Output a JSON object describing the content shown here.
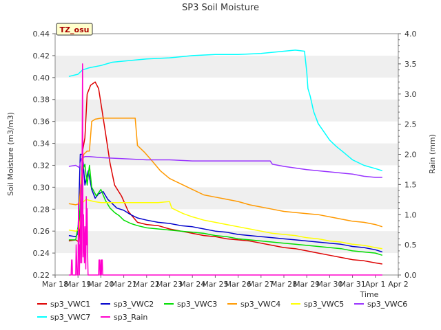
{
  "chart_data": {
    "type": "line",
    "title": "SP3 Soil Moisture",
    "badge": "TZ_osu",
    "xlabel": "Time",
    "ylabel": "Soil Moisture (m3/m3)",
    "y2label": "Rain (mm)",
    "xlim": [
      0,
      15
    ],
    "ylim": [
      0.22,
      0.44
    ],
    "y2lim": [
      0.0,
      4.0
    ],
    "grid": "alternating horizontal bands",
    "legend_position": "bottom",
    "x_ticks": [
      "Mar 18",
      "Mar 19",
      "Mar 20",
      "Mar 21",
      "Mar 22",
      "Mar 23",
      "Mar 24",
      "Mar 25",
      "Mar 26",
      "Mar 27",
      "Mar 28",
      "Mar 29",
      "Mar 30",
      "Mar 31",
      "Apr 1",
      "Apr 2"
    ],
    "y_ticks": [
      "0.22",
      "0.24",
      "0.26",
      "0.28",
      "0.30",
      "0.32",
      "0.34",
      "0.36",
      "0.38",
      "0.40",
      "0.42",
      "0.44"
    ],
    "y2_ticks": [
      "0.0",
      "0.5",
      "1.0",
      "1.5",
      "2.0",
      "2.5",
      "3.0",
      "3.5",
      "4.0"
    ],
    "series": [
      {
        "name": "sp3_VWC1",
        "color": "#dd0000",
        "axis": "left",
        "x": [
          0.6,
          0.9,
          1.05,
          1.2,
          1.3,
          1.4,
          1.55,
          1.75,
          1.9,
          2.05,
          2.2,
          2.4,
          2.6,
          2.9,
          3.2,
          3.6,
          4.0,
          4.5,
          5.0,
          5.5,
          6.0,
          6.5,
          7.0,
          7.5,
          8.0,
          8.5,
          9.0,
          9.5,
          10.0,
          10.5,
          11.0,
          11.5,
          12.0,
          12.5,
          13.0,
          13.5,
          14.0,
          14.3
        ],
        "y": [
          0.251,
          0.252,
          0.25,
          0.333,
          0.345,
          0.385,
          0.393,
          0.396,
          0.39,
          0.37,
          0.35,
          0.322,
          0.302,
          0.292,
          0.278,
          0.268,
          0.266,
          0.265,
          0.262,
          0.26,
          0.258,
          0.256,
          0.255,
          0.253,
          0.252,
          0.251,
          0.249,
          0.247,
          0.245,
          0.244,
          0.242,
          0.24,
          0.238,
          0.236,
          0.234,
          0.233,
          0.231,
          0.23
        ]
      },
      {
        "name": "sp3_VWC2",
        "color": "#0000cc",
        "axis": "left",
        "x": [
          0.6,
          0.9,
          1.0,
          1.1,
          1.2,
          1.3,
          1.45,
          1.6,
          1.75,
          1.9,
          2.1,
          2.3,
          2.5,
          2.7,
          3.0,
          3.3,
          3.6,
          4.0,
          4.5,
          5.0,
          5.5,
          6.0,
          6.5,
          7.0,
          7.5,
          8.0,
          8.5,
          9.0,
          9.5,
          10.0,
          10.5,
          11.0,
          11.5,
          12.0,
          12.5,
          13.0,
          13.5,
          14.0,
          14.3
        ],
        "y": [
          0.256,
          0.255,
          0.258,
          0.33,
          0.33,
          0.302,
          0.315,
          0.298,
          0.29,
          0.294,
          0.296,
          0.289,
          0.285,
          0.281,
          0.279,
          0.275,
          0.272,
          0.27,
          0.268,
          0.267,
          0.265,
          0.264,
          0.262,
          0.26,
          0.259,
          0.257,
          0.256,
          0.255,
          0.254,
          0.253,
          0.252,
          0.251,
          0.25,
          0.249,
          0.248,
          0.246,
          0.245,
          0.243,
          0.241
        ]
      },
      {
        "name": "sp3_VWC3",
        "color": "#00dd00",
        "axis": "left",
        "x": [
          0.6,
          0.9,
          1.05,
          1.2,
          1.3,
          1.4,
          1.5,
          1.6,
          1.8,
          2.0,
          2.2,
          2.4,
          2.6,
          2.8,
          3.0,
          3.3,
          3.6,
          4.0,
          4.5,
          5.0,
          5.5,
          6.0,
          6.5,
          7.0,
          7.5,
          8.0,
          8.5,
          9.0,
          9.5,
          10.0,
          10.5,
          11.0,
          11.5,
          12.0,
          12.5,
          13.0,
          13.5,
          14.0,
          14.3
        ],
        "y": [
          0.252,
          0.252,
          0.27,
          0.315,
          0.321,
          0.302,
          0.32,
          0.3,
          0.292,
          0.298,
          0.288,
          0.281,
          0.277,
          0.274,
          0.27,
          0.267,
          0.265,
          0.263,
          0.262,
          0.261,
          0.26,
          0.259,
          0.258,
          0.256,
          0.255,
          0.253,
          0.252,
          0.251,
          0.25,
          0.249,
          0.248,
          0.247,
          0.246,
          0.245,
          0.244,
          0.242,
          0.241,
          0.24,
          0.238
        ]
      },
      {
        "name": "sp3_VWC4",
        "color": "#ff9900",
        "axis": "left",
        "x": [
          0.6,
          0.9,
          1.05,
          1.15,
          1.25,
          1.4,
          1.5,
          1.6,
          1.75,
          2.0,
          2.5,
          3.0,
          3.3,
          3.5,
          3.6,
          3.9,
          4.2,
          4.6,
          5.0,
          5.5,
          6.0,
          6.5,
          7.0,
          7.5,
          8.0,
          8.5,
          9.0,
          9.5,
          10.0,
          10.5,
          11.0,
          11.5,
          12.0,
          12.5,
          13.0,
          13.5,
          14.0,
          14.3
        ],
        "y": [
          0.285,
          0.284,
          0.285,
          0.31,
          0.33,
          0.333,
          0.333,
          0.36,
          0.362,
          0.363,
          0.363,
          0.363,
          0.363,
          0.363,
          0.338,
          0.332,
          0.325,
          0.315,
          0.308,
          0.303,
          0.298,
          0.293,
          0.291,
          0.289,
          0.287,
          0.284,
          0.282,
          0.28,
          0.278,
          0.277,
          0.276,
          0.275,
          0.273,
          0.271,
          0.269,
          0.268,
          0.266,
          0.264
        ]
      },
      {
        "name": "sp3_VWC5",
        "color": "#ffff00",
        "axis": "left",
        "x": [
          0.6,
          0.9,
          1.05,
          1.2,
          1.35,
          1.5,
          1.7,
          2.0,
          2.5,
          3.0,
          3.5,
          4.0,
          4.5,
          5.0,
          5.1,
          5.3,
          5.6,
          6.0,
          6.5,
          7.0,
          7.5,
          8.0,
          8.5,
          9.0,
          9.5,
          10.0,
          10.5,
          11.0,
          11.5,
          12.0,
          12.5,
          13.0,
          13.5,
          14.0,
          14.3
        ],
        "y": [
          0.261,
          0.26,
          0.262,
          0.286,
          0.289,
          0.288,
          0.287,
          0.286,
          0.286,
          0.286,
          0.286,
          0.286,
          0.286,
          0.287,
          0.281,
          0.279,
          0.276,
          0.273,
          0.27,
          0.268,
          0.266,
          0.264,
          0.262,
          0.26,
          0.258,
          0.257,
          0.256,
          0.254,
          0.253,
          0.251,
          0.25,
          0.248,
          0.247,
          0.245,
          0.244
        ]
      },
      {
        "name": "sp3_VWC6",
        "color": "#9933ff",
        "axis": "left",
        "x": [
          0.6,
          0.9,
          1.05,
          1.15,
          1.3,
          1.5,
          2.0,
          3.0,
          4.0,
          5.0,
          6.0,
          7.0,
          8.0,
          9.0,
          9.4,
          9.5,
          10.0,
          11.0,
          12.0,
          13.0,
          13.5,
          14.0,
          14.3
        ],
        "y": [
          0.319,
          0.32,
          0.318,
          0.326,
          0.328,
          0.328,
          0.327,
          0.326,
          0.325,
          0.325,
          0.324,
          0.324,
          0.324,
          0.324,
          0.324,
          0.321,
          0.319,
          0.316,
          0.314,
          0.312,
          0.31,
          0.309,
          0.309
        ]
      },
      {
        "name": "sp3_VWC7",
        "color": "#00ffff",
        "axis": "left",
        "x": [
          0.6,
          1.0,
          1.2,
          1.5,
          2.0,
          2.5,
          3.0,
          4.0,
          5.0,
          6.0,
          7.0,
          8.0,
          9.0,
          10.0,
          10.5,
          10.9,
          11.0,
          11.05,
          11.15,
          11.3,
          11.5,
          11.8,
          12.0,
          12.3,
          12.6,
          13.0,
          13.5,
          14.0,
          14.3
        ],
        "y": [
          0.401,
          0.403,
          0.407,
          0.409,
          0.411,
          0.414,
          0.415,
          0.417,
          0.418,
          0.42,
          0.421,
          0.421,
          0.422,
          0.424,
          0.425,
          0.424,
          0.405,
          0.39,
          0.383,
          0.369,
          0.358,
          0.349,
          0.343,
          0.337,
          0.332,
          0.325,
          0.32,
          0.317,
          0.315
        ]
      },
      {
        "name": "sp3_Rain",
        "color": "#ff00cc",
        "axis": "right",
        "x": [
          0.6,
          0.7,
          0.72,
          0.74,
          0.76,
          0.9,
          0.92,
          0.94,
          0.96,
          1.0,
          1.02,
          1.04,
          1.06,
          1.08,
          1.1,
          1.12,
          1.14,
          1.16,
          1.18,
          1.2,
          1.22,
          1.24,
          1.26,
          1.28,
          1.3,
          1.32,
          1.34,
          1.36,
          1.38,
          1.4,
          1.42,
          1.44,
          1.46,
          1.5,
          1.9,
          1.92,
          1.94,
          1.96,
          1.98,
          2.0,
          2.02,
          2.04,
          2.06,
          2.08,
          2.1,
          2.2,
          14.3
        ],
        "y": [
          0.0,
          0.0,
          0.25,
          0.25,
          0.0,
          0.0,
          0.5,
          0.3,
          0.0,
          0.0,
          1.2,
          0.8,
          0.0,
          0.5,
          0.2,
          1.5,
          0.6,
          0.2,
          2.0,
          3.5,
          0.3,
          1.0,
          0.5,
          0.2,
          0.8,
          0.6,
          0.1,
          1.3,
          0.5,
          1.1,
          0.4,
          0.0,
          0.0,
          0.0,
          0.0,
          0.25,
          0.25,
          0.0,
          0.0,
          0.25,
          0.0,
          0.25,
          0.25,
          0.0,
          0.0,
          0.0,
          0.0
        ]
      }
    ]
  }
}
